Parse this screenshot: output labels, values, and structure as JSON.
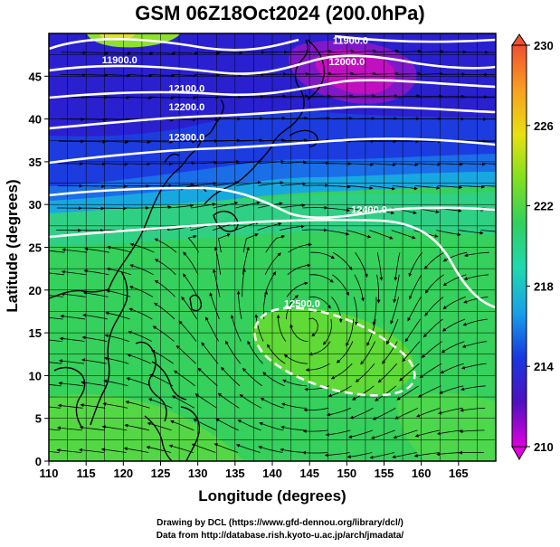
{
  "title": "GSM 06Z18Oct2024 (200.0hPa)",
  "xlabel": "Longitude (degrees)",
  "ylabel": "Latitude  (degrees)",
  "credits": [
    "Drawing by DCL (https://www.gfd-dennou.org/library/dcl/)",
    "Data from http://database.rish.kyoto-u.ac.jp/arch/jmadata/"
  ],
  "chart_data": {
    "type": "heatmap",
    "xlim": [
      110,
      170
    ],
    "ylim": [
      0,
      50
    ],
    "xticks": [
      "110",
      "115",
      "120",
      "125",
      "130",
      "135",
      "140",
      "145",
      "150",
      "155",
      "160",
      "165"
    ],
    "yticks": [
      "0",
      "5",
      "10",
      "15",
      "20",
      "25",
      "30",
      "35",
      "40",
      "45"
    ],
    "colorbar": {
      "range": [
        210,
        230
      ],
      "ticks": [
        "210",
        "214",
        "218",
        "222",
        "226",
        "230"
      ],
      "colors": [
        "#e000e0",
        "#5010c0",
        "#1838e0",
        "#18a0e8",
        "#20d8b0",
        "#30d060",
        "#80e020",
        "#e8e010",
        "#f8a020",
        "#f05030"
      ]
    },
    "contour_labels": [
      {
        "text": "11900.0",
        "lon": 119.5,
        "lat": 46.5
      },
      {
        "text": "11900.0",
        "lon": 150.5,
        "lat": 48.8
      },
      {
        "text": "12000.0",
        "lon": 150.0,
        "lat": 46.3
      },
      {
        "text": "12100.0",
        "lon": 128.5,
        "lat": 43.2
      },
      {
        "text": "12200.0",
        "lon": 128.5,
        "lat": 41.0
      },
      {
        "text": "12300.0",
        "lon": 128.5,
        "lat": 37.5
      },
      {
        "text": "12400.0",
        "lon": 153.0,
        "lat": 29.0
      },
      {
        "text": "12500.0",
        "lon": 144.0,
        "lat": 18.0
      }
    ]
  }
}
